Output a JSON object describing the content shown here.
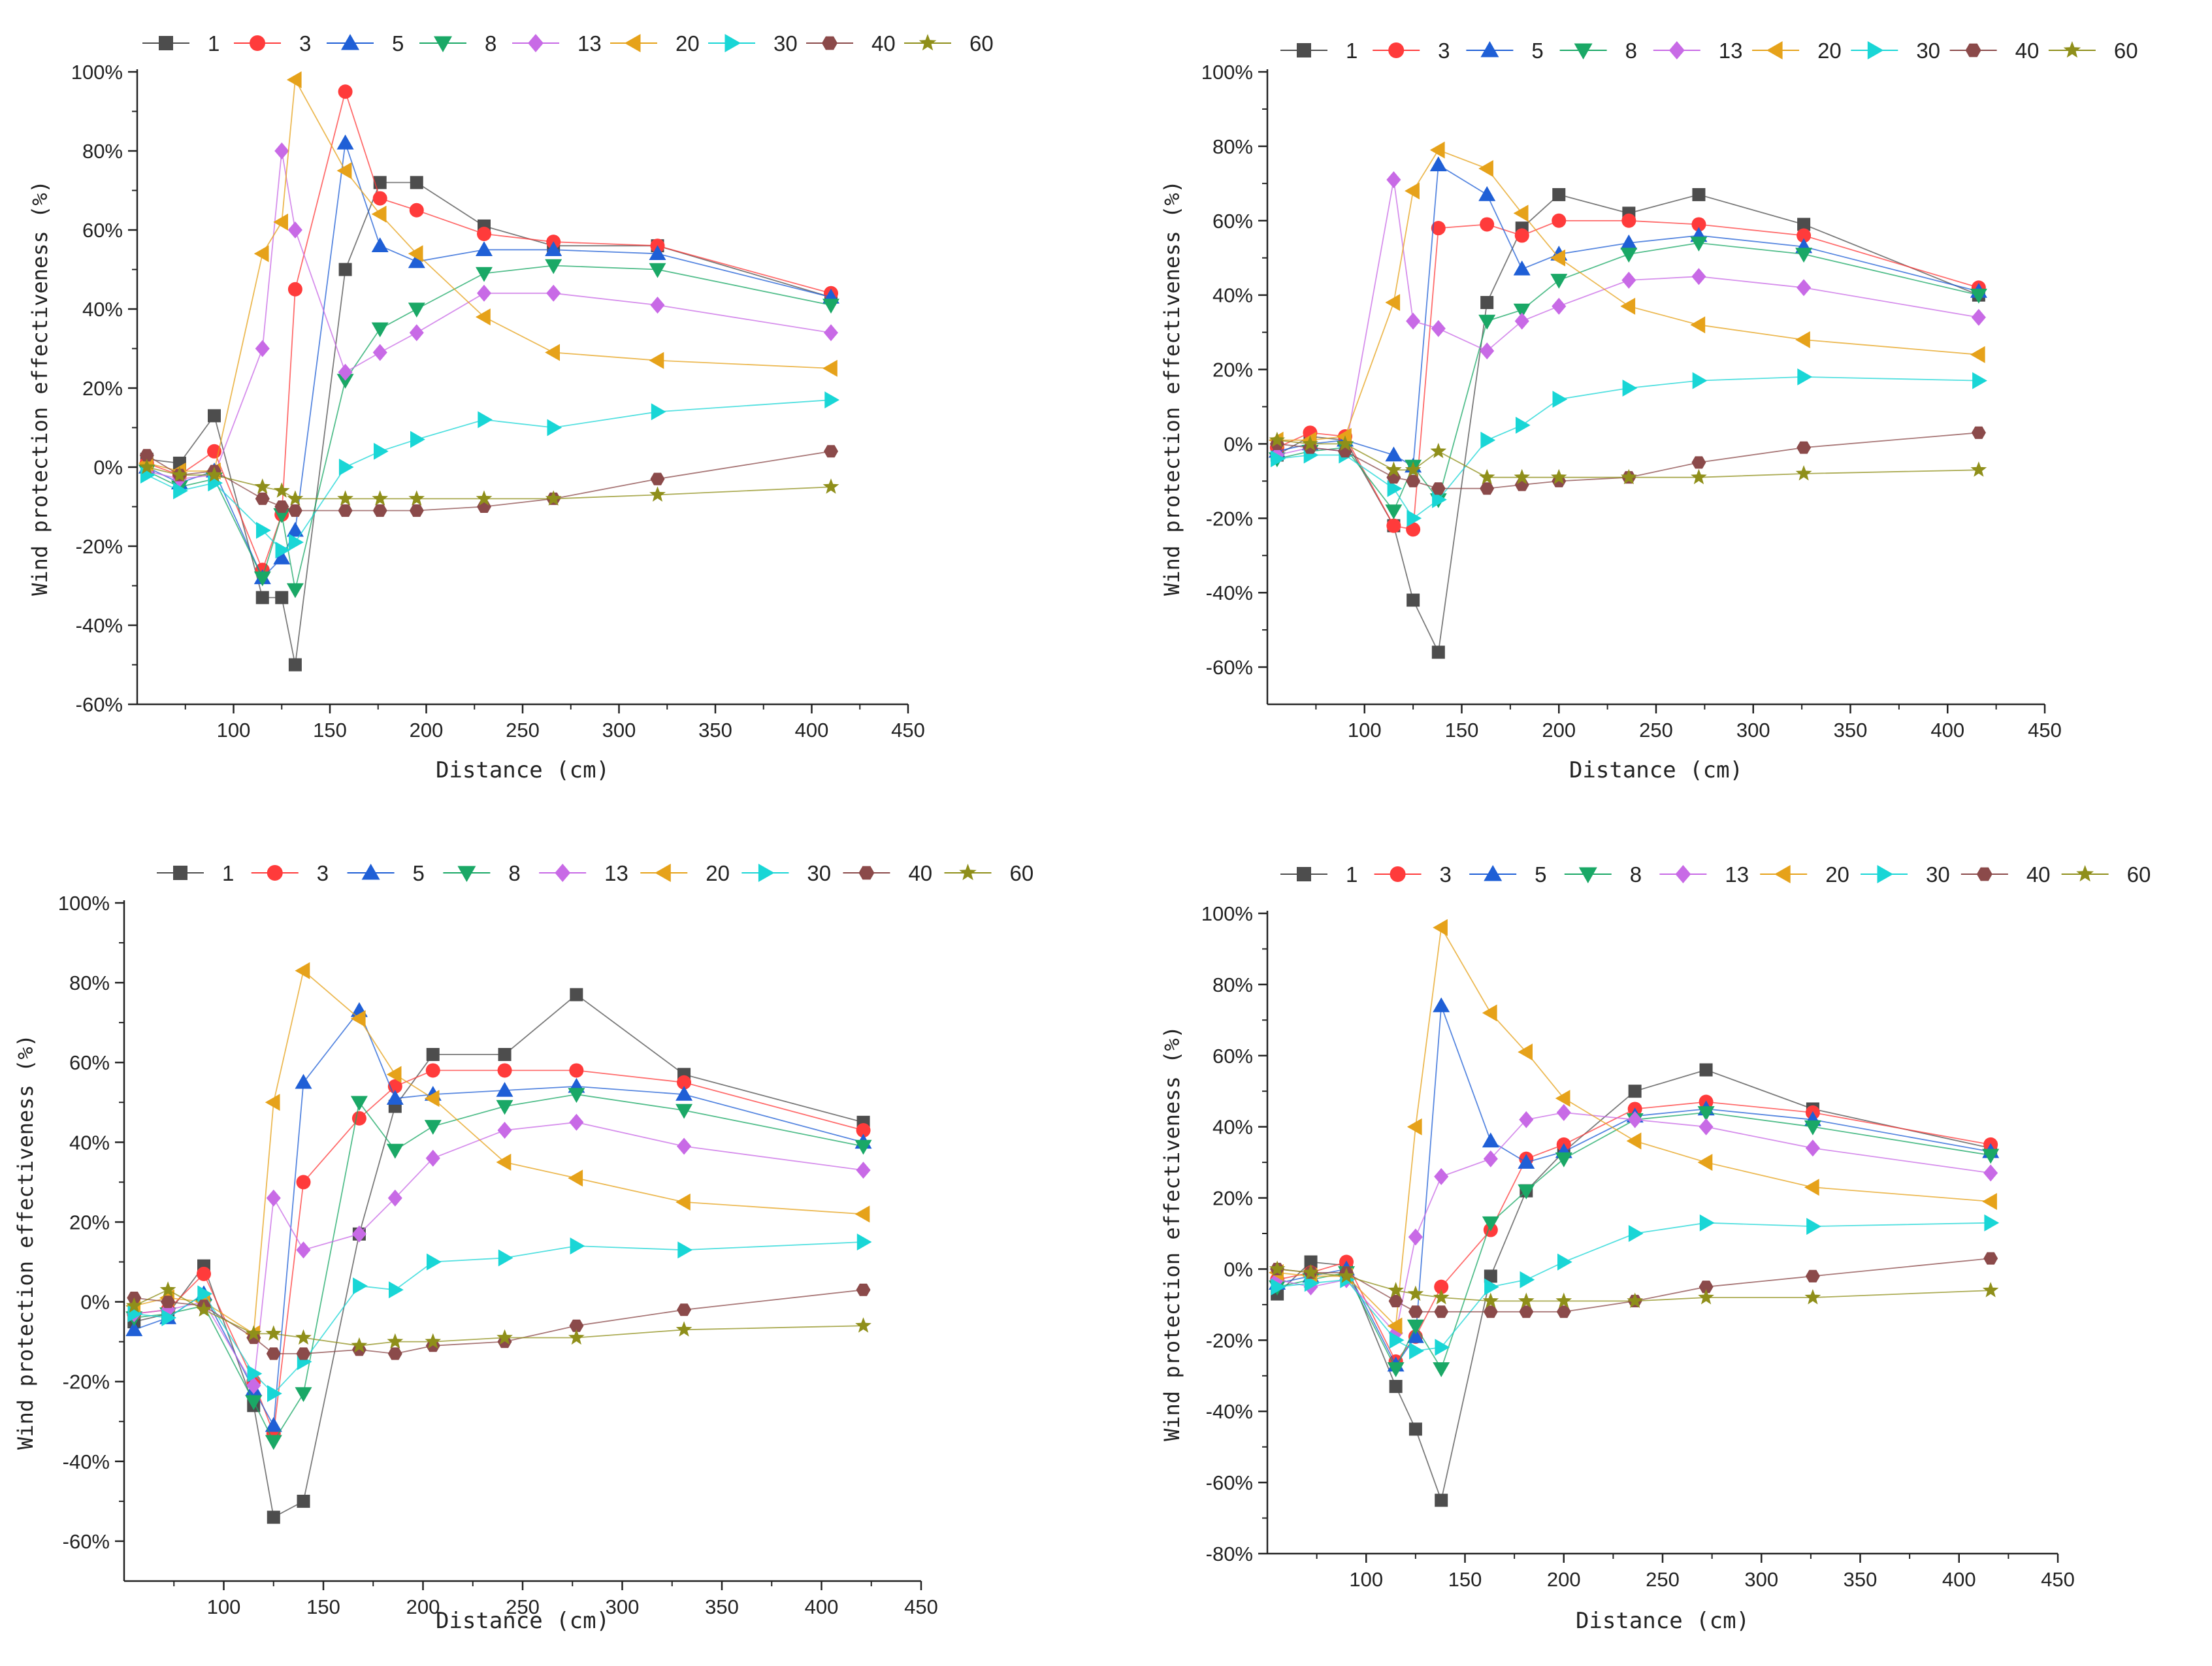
{
  "colors": {
    "1": "#4d4d4d",
    "3": "#ff3b3b",
    "5": "#1f5fd6",
    "8": "#1aa866",
    "13": "#c86ae6",
    "20": "#e6a21a",
    "30": "#19d6d6",
    "40": "#8b4a4a",
    "60": "#8f8f1a"
  },
  "markers": {
    "1": "square",
    "3": "circle",
    "5": "triangle-up",
    "8": "triangle-down",
    "13": "diamond",
    "20": "triangle-left",
    "30": "triangle-right",
    "40": "hexagon",
    "60": "star"
  },
  "chart_data": [
    {
      "type": "line",
      "xlabel": "Distance (cm)",
      "ylabel": "Wind protection effectiveness (%)",
      "xlim": [
        50,
        450
      ],
      "ylim": [
        -60,
        100
      ],
      "xticks": [
        "100",
        "150",
        "200",
        "250",
        "300",
        "350",
        "400",
        "450"
      ],
      "yticks": [
        "-60%",
        "-40%",
        "-20%",
        "0%",
        "20%",
        "40%",
        "60%",
        "80%",
        "100%"
      ],
      "x": [
        55,
        72,
        90,
        115,
        125,
        132,
        158,
        176,
        195,
        230,
        266,
        320,
        410
      ],
      "series": [
        {
          "name": "1",
          "values": [
            2,
            1,
            13,
            -33,
            -33,
            -50,
            50,
            72,
            72,
            61,
            56,
            56,
            43
          ]
        },
        {
          "name": "3",
          "values": [
            1,
            -2,
            4,
            -26,
            -12,
            45,
            95,
            68,
            65,
            59,
            57,
            56,
            44
          ]
        },
        {
          "name": "5",
          "values": [
            0,
            -4,
            -1,
            -28,
            -23,
            -16,
            82,
            56,
            52,
            55,
            55,
            54,
            43
          ]
        },
        {
          "name": "8",
          "values": [
            -1,
            -5,
            -3,
            -28,
            -12,
            -31,
            22,
            35,
            40,
            49,
            51,
            50,
            41
          ]
        },
        {
          "name": "13",
          "values": [
            -1,
            -3,
            -2,
            30,
            80,
            60,
            24,
            29,
            34,
            44,
            44,
            41,
            34
          ]
        },
        {
          "name": "20",
          "values": [
            1,
            -1,
            -1,
            54,
            62,
            98,
            75,
            64,
            54,
            38,
            29,
            27,
            25
          ]
        },
        {
          "name": "30",
          "values": [
            -2,
            -6,
            -4,
            -16,
            -21,
            -19,
            0,
            4,
            7,
            12,
            10,
            14,
            17
          ]
        },
        {
          "name": "40",
          "values": [
            3,
            -2,
            -1,
            -8,
            -10,
            -11,
            -11,
            -11,
            -11,
            -10,
            -8,
            -3,
            4
          ]
        },
        {
          "name": "60",
          "values": [
            0,
            -2,
            -2,
            -5,
            -6,
            -8,
            -8,
            -8,
            -8,
            -8,
            -8,
            -7,
            -5
          ]
        }
      ]
    },
    {
      "type": "line",
      "xlabel": "Distance (cm)",
      "ylabel": "Wind protection effectiveness (%)",
      "xlim": [
        50,
        450
      ],
      "ylim": [
        -70,
        100
      ],
      "xticks": [
        "100",
        "150",
        "200",
        "250",
        "300",
        "350",
        "400",
        "450"
      ],
      "yticks": [
        "-60%",
        "-40%",
        "-20%",
        "0%",
        "20%",
        "40%",
        "60%",
        "80%",
        "100%"
      ],
      "x": [
        55,
        72,
        90,
        115,
        125,
        138,
        163,
        181,
        200,
        236,
        272,
        326,
        416
      ],
      "series": [
        {
          "name": "1",
          "values": [
            -3,
            2,
            1,
            -22,
            -42,
            -56,
            38,
            58,
            67,
            62,
            67,
            59,
            40
          ]
        },
        {
          "name": "3",
          "values": [
            -1,
            3,
            2,
            -22,
            -23,
            58,
            59,
            56,
            60,
            60,
            59,
            56,
            42
          ]
        },
        {
          "name": "5",
          "values": [
            -2,
            0,
            1,
            -3,
            -6,
            75,
            67,
            47,
            51,
            54,
            56,
            53,
            41
          ]
        },
        {
          "name": "8",
          "values": [
            -4,
            -2,
            -1,
            -18,
            -6,
            -15,
            33,
            36,
            44,
            51,
            54,
            51,
            40
          ]
        },
        {
          "name": "13",
          "values": [
            -3,
            -1,
            -2,
            71,
            33,
            31,
            25,
            33,
            37,
            44,
            45,
            42,
            34
          ]
        },
        {
          "name": "20",
          "values": [
            1,
            1,
            2,
            38,
            68,
            79,
            74,
            62,
            50,
            37,
            32,
            28,
            24
          ]
        },
        {
          "name": "30",
          "values": [
            -4,
            -3,
            -3,
            -12,
            -20,
            -15,
            1,
            5,
            12,
            15,
            17,
            18,
            17
          ]
        },
        {
          "name": "40",
          "values": [
            0,
            -1,
            -2,
            -9,
            -10,
            -12,
            -12,
            -11,
            -10,
            -9,
            -5,
            -1,
            3
          ]
        },
        {
          "name": "60",
          "values": [
            1,
            0,
            0,
            -7,
            -7,
            -2,
            -9,
            -9,
            -9,
            -9,
            -9,
            -8,
            -7
          ]
        }
      ]
    },
    {
      "type": "line",
      "xlabel": "Distance (cm)",
      "ylabel": "Wind protection effectiveness (%)",
      "xlim": [
        50,
        450
      ],
      "ylim": [
        -70,
        100
      ],
      "xticks": [
        "100",
        "150",
        "200",
        "250",
        "300",
        "350",
        "400",
        "450"
      ],
      "yticks": [
        "-60%",
        "-40%",
        "-20%",
        "0%",
        "20%",
        "40%",
        "60%",
        "80%",
        "100%"
      ],
      "x": [
        55,
        72,
        90,
        115,
        125,
        140,
        168,
        186,
        205,
        241,
        277,
        331,
        421
      ],
      "series": [
        {
          "name": "1",
          "values": [
            -5,
            -3,
            9,
            -26,
            -54,
            -50,
            17,
            49,
            62,
            62,
            77,
            57,
            45
          ]
        },
        {
          "name": "3",
          "values": [
            -3,
            -2,
            7,
            -20,
            -33,
            30,
            46,
            54,
            58,
            58,
            58,
            55,
            43
          ]
        },
        {
          "name": "5",
          "values": [
            -7,
            -4,
            2,
            -22,
            -31,
            55,
            73,
            51,
            52,
            53,
            54,
            52,
            40
          ]
        },
        {
          "name": "8",
          "values": [
            -4,
            -3,
            -1,
            -25,
            -35,
            -23,
            50,
            38,
            44,
            49,
            52,
            48,
            39
          ]
        },
        {
          "name": "13",
          "values": [
            -3,
            -2,
            0,
            -21,
            26,
            13,
            17,
            26,
            36,
            43,
            45,
            39,
            33
          ]
        },
        {
          "name": "20",
          "values": [
            -1,
            1,
            0,
            -8,
            50,
            83,
            71,
            57,
            51,
            35,
            31,
            25,
            22
          ]
        },
        {
          "name": "30",
          "values": [
            -3,
            -4,
            2,
            -18,
            -23,
            -15,
            4,
            3,
            10,
            11,
            14,
            13,
            15
          ]
        },
        {
          "name": "40",
          "values": [
            1,
            0,
            -1,
            -9,
            -13,
            -13,
            -12,
            -13,
            -11,
            -10,
            -6,
            -2,
            3
          ]
        },
        {
          "name": "60",
          "values": [
            -1,
            3,
            -2,
            -8,
            -8,
            -9,
            -11,
            -10,
            -10,
            -9,
            -9,
            -7,
            -6
          ]
        }
      ]
    },
    {
      "type": "line",
      "xlabel": "Distance (cm)",
      "ylabel": "Wind protection effectiveness (%)",
      "xlim": [
        50,
        450
      ],
      "ylim": [
        -80,
        100
      ],
      "xticks": [
        "100",
        "150",
        "200",
        "250",
        "300",
        "350",
        "400",
        "450"
      ],
      "yticks": [
        "-80%",
        "-60%",
        "-40%",
        "-20%",
        "0%",
        "20%",
        "40%",
        "60%",
        "80%",
        "100%"
      ],
      "x": [
        55,
        72,
        90,
        115,
        125,
        138,
        163,
        181,
        200,
        236,
        272,
        326,
        416
      ],
      "series": [
        {
          "name": "1",
          "values": [
            -7,
            2,
            1,
            -33,
            -45,
            -65,
            -2,
            22,
            33,
            50,
            56,
            45,
            34
          ]
        },
        {
          "name": "3",
          "values": [
            -3,
            -1,
            2,
            -26,
            -19,
            -5,
            11,
            31,
            35,
            45,
            47,
            44,
            35
          ]
        },
        {
          "name": "5",
          "values": [
            -4,
            -2,
            0,
            -27,
            -19,
            74,
            36,
            30,
            33,
            43,
            45,
            42,
            33
          ]
        },
        {
          "name": "8",
          "values": [
            -5,
            -3,
            -1,
            -28,
            -16,
            -28,
            13,
            22,
            31,
            42,
            44,
            40,
            32
          ]
        },
        {
          "name": "13",
          "values": [
            -3,
            -5,
            -3,
            -18,
            9,
            26,
            31,
            42,
            44,
            42,
            40,
            34,
            27
          ]
        },
        {
          "name": "20",
          "values": [
            -1,
            -2,
            -2,
            -16,
            40,
            96,
            72,
            61,
            48,
            36,
            30,
            23,
            19
          ]
        },
        {
          "name": "30",
          "values": [
            -5,
            -4,
            -3,
            -20,
            -23,
            -22,
            -5,
            -3,
            2,
            10,
            13,
            12,
            13
          ]
        },
        {
          "name": "40",
          "values": [
            0,
            -1,
            -1,
            -9,
            -12,
            -12,
            -12,
            -12,
            -12,
            -9,
            -5,
            -2,
            3
          ]
        },
        {
          "name": "60",
          "values": [
            0,
            -1,
            -2,
            -6,
            -7,
            -8,
            -9,
            -9,
            -9,
            -9,
            -8,
            -8,
            -6
          ]
        }
      ]
    }
  ]
}
